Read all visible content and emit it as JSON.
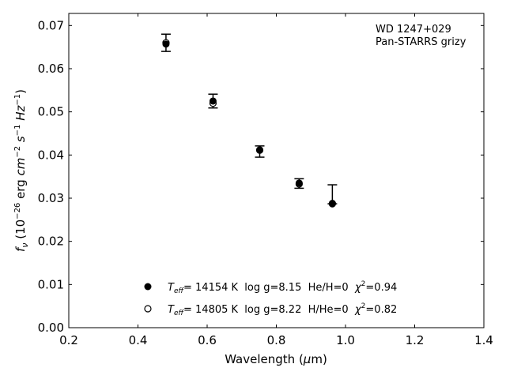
{
  "chart_data": {
    "type": "scatter",
    "title": "",
    "xlabel": "Wavelength (μm)",
    "ylabel": "f_ν (10^-26 erg cm^-2 s^-1 Hz^-1)",
    "xlim": [
      0.2,
      1.4
    ],
    "ylim": [
      0.0,
      0.0728
    ],
    "grid": false,
    "xticks": [
      "0.2",
      "0.4",
      "0.6",
      "0.8",
      "1.0",
      "1.2",
      "1.4"
    ],
    "yticks": [
      "0.00",
      "0.01",
      "0.02",
      "0.03",
      "0.04",
      "0.05",
      "0.06",
      "0.07"
    ],
    "annotation": [
      "WD 1247+029",
      "Pan-STARRS grizy"
    ],
    "observed": {
      "name": "Pan-STARRS photometry",
      "x": [
        0.481,
        0.617,
        0.752,
        0.866,
        0.962
      ],
      "y": [
        0.066,
        0.0525,
        0.0408,
        0.0334,
        0.0309
      ],
      "yerr": [
        0.002,
        0.0016,
        0.0013,
        0.0011,
        0.0022
      ]
    },
    "series": [
      {
        "name": "filled",
        "marker": "filled-circle",
        "x": [
          0.481,
          0.617,
          0.752,
          0.866,
          0.962
        ],
        "y": [
          0.0657,
          0.0525,
          0.0412,
          0.0335,
          0.0288
        ],
        "legend": {
          "teff_label": "T",
          "teff_sub": "eff",
          "text": "= 14154 K  log g=8.15  He/H=0  ",
          "chi": "χ",
          "chi_sup": "2",
          "chi_val": "=0.94"
        }
      },
      {
        "name": "open",
        "marker": "open-circle",
        "x": [
          0.481,
          0.617,
          0.752,
          0.866,
          0.962
        ],
        "y": [
          0.066,
          0.052,
          0.0411,
          0.0333,
          0.0287
        ],
        "legend": {
          "teff_label": "T",
          "teff_sub": "eff",
          "text": "= 14805 K  log g=8.22  H/He=0  ",
          "chi": "χ",
          "chi_sup": "2",
          "chi_val": "=0.82"
        }
      }
    ],
    "legend_position": "bottom-center"
  }
}
